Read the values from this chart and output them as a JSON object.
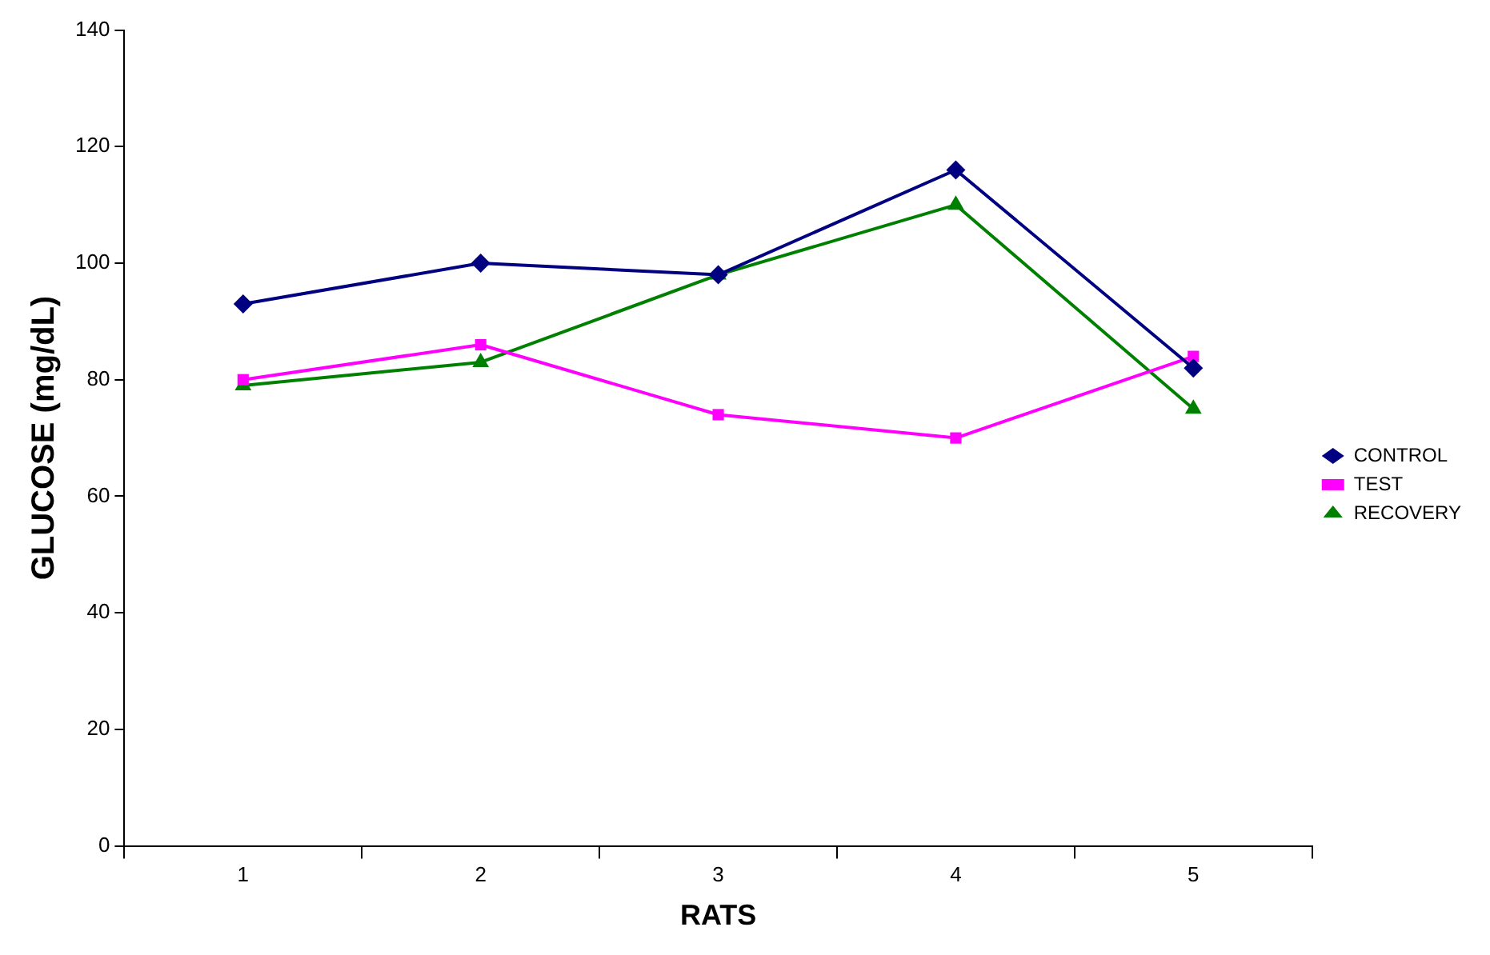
{
  "chart_data": {
    "type": "line",
    "xlabel": "RATS",
    "ylabel": "GLUCOSE (mg/dL)",
    "categories": [
      "1",
      "2",
      "3",
      "4",
      "5"
    ],
    "series": [
      {
        "name": "CONTROL",
        "color": "#000080",
        "marker": "diamond",
        "values": [
          93,
          100,
          98,
          116,
          82
        ]
      },
      {
        "name": "TEST",
        "color": "#ff00ff",
        "marker": "square",
        "values": [
          80,
          86,
          74,
          70,
          84
        ]
      },
      {
        "name": "RECOVERY",
        "color": "#008000",
        "marker": "triangle",
        "values": [
          79,
          83,
          98,
          110,
          75
        ]
      }
    ],
    "ylim": [
      0,
      140
    ],
    "yticks": [
      0,
      20,
      40,
      60,
      80,
      100,
      120,
      140
    ],
    "grid": false,
    "legend": "right",
    "line_style": "solid"
  }
}
